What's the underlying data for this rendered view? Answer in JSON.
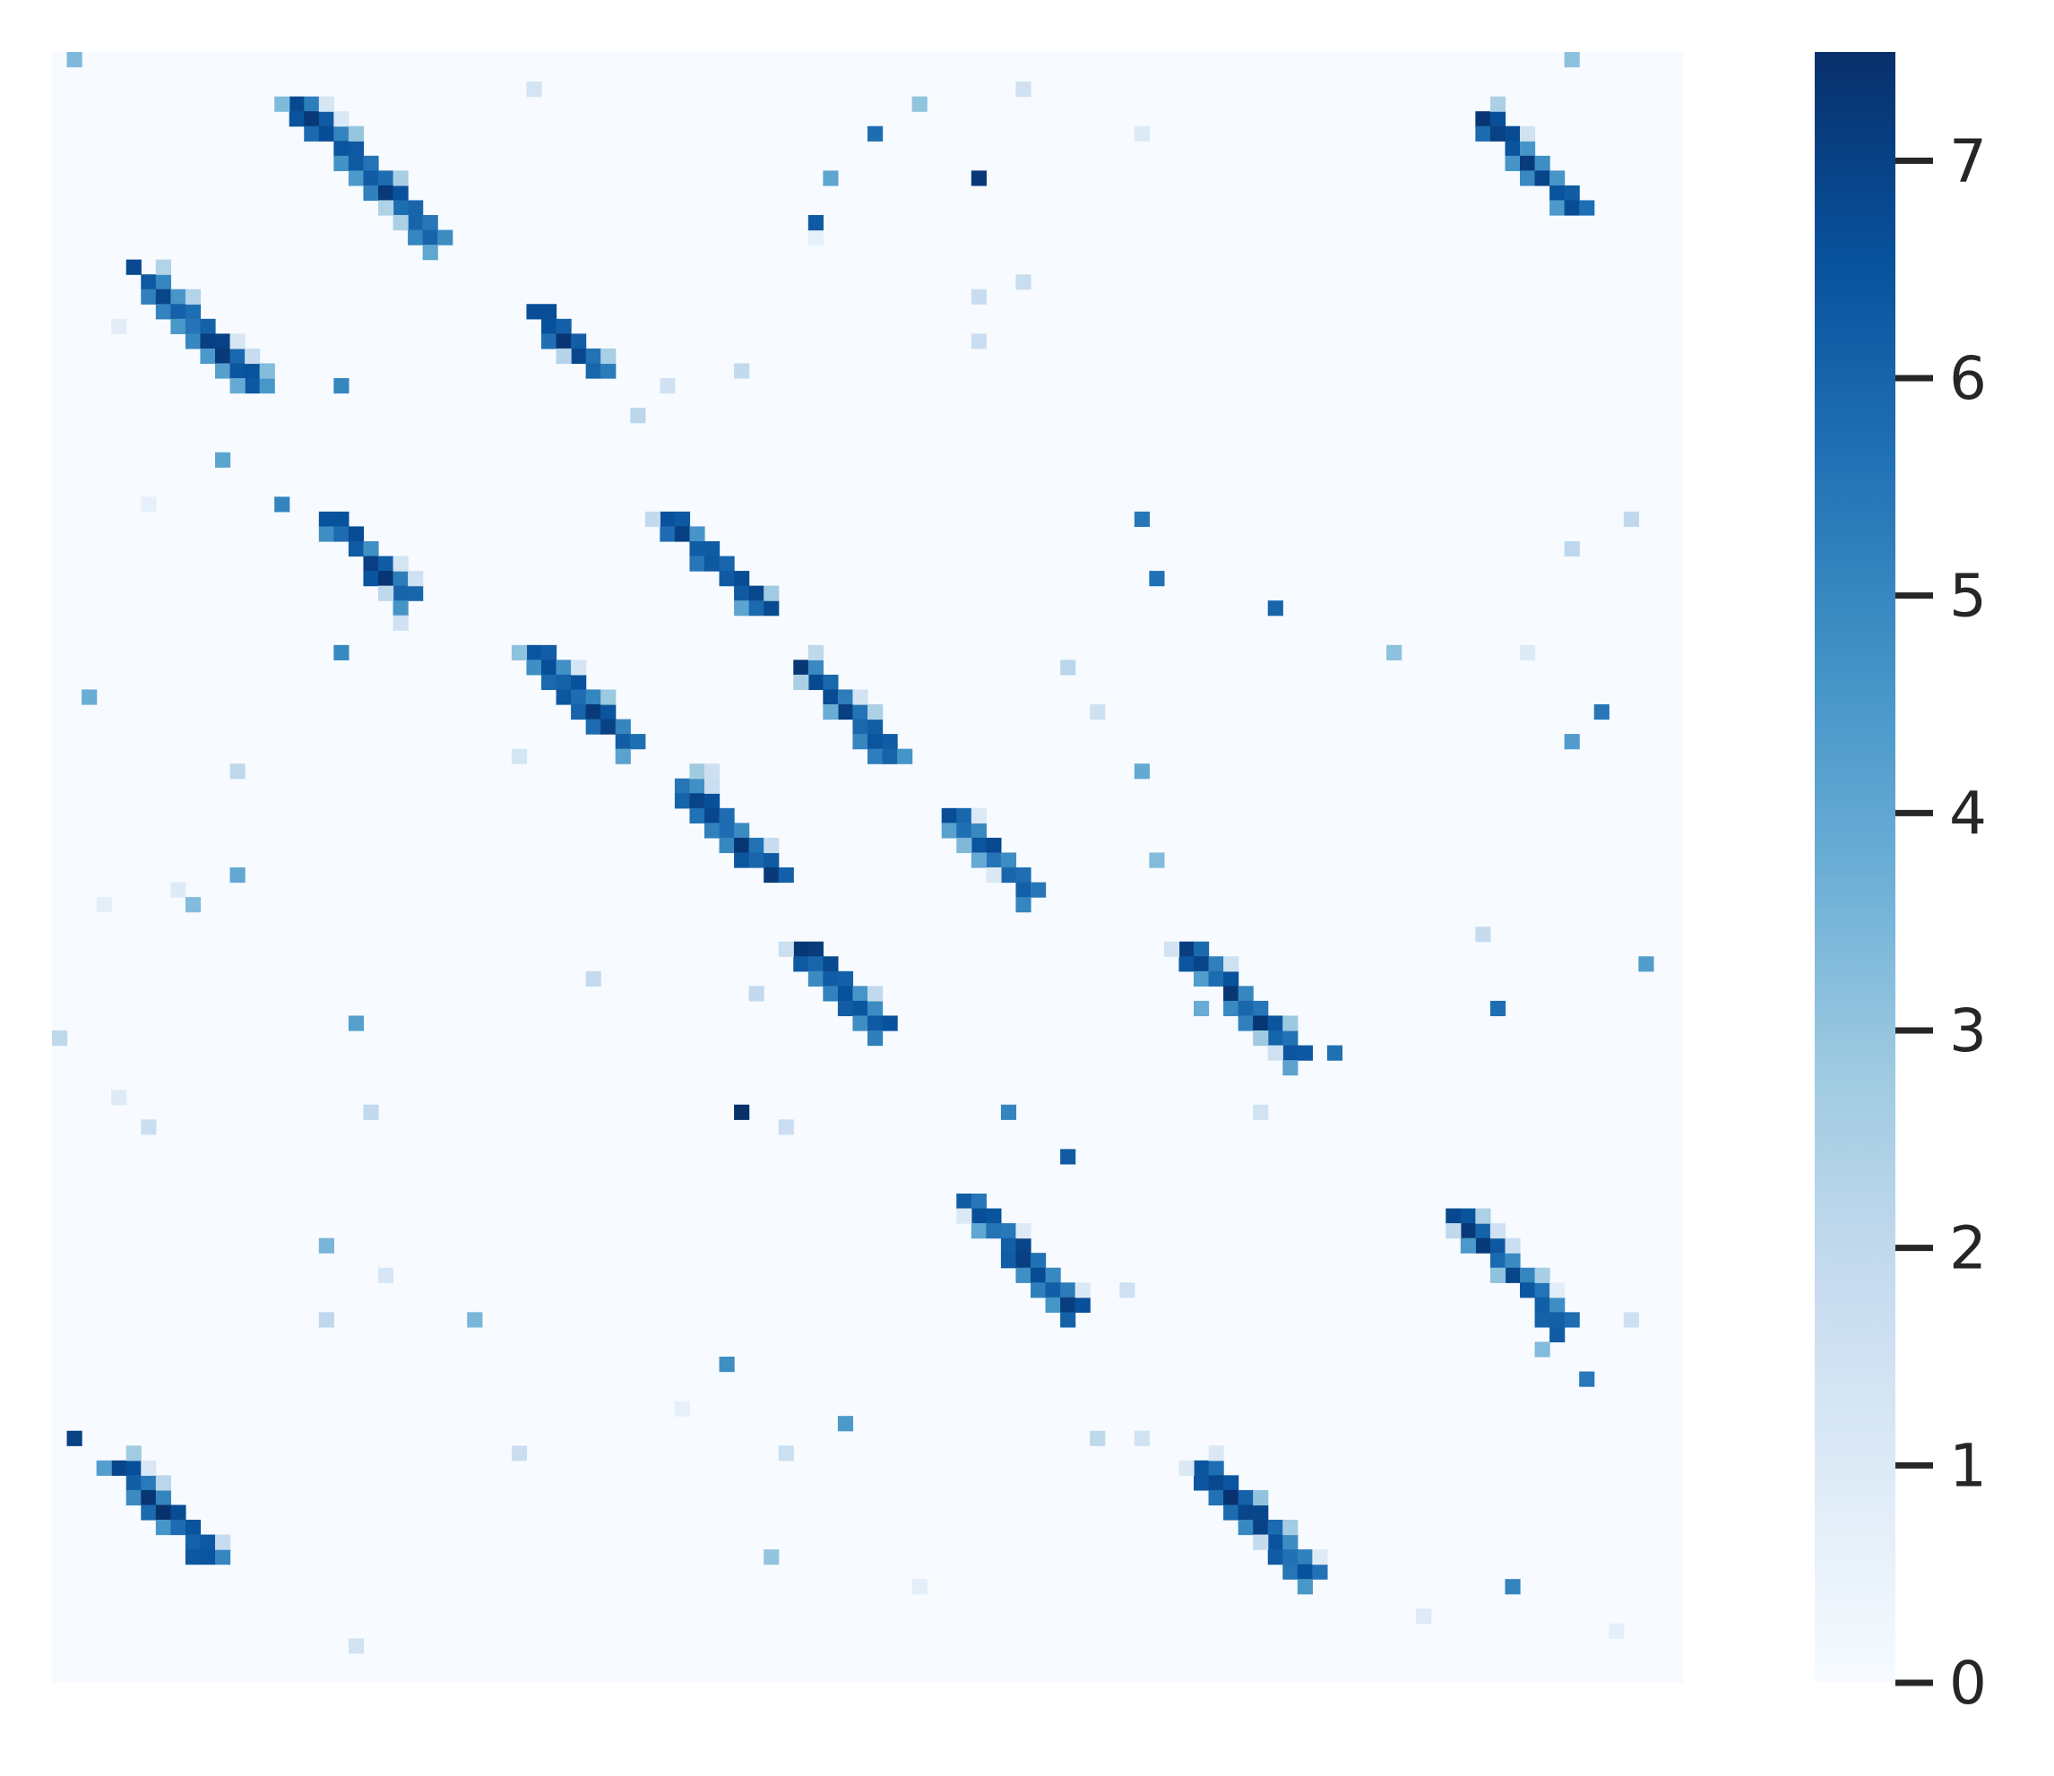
{
  "chart_data": {
    "type": "heatmap",
    "title": "",
    "xlabel": "",
    "ylabel": "",
    "colormap": "Blues",
    "grid_size": 110,
    "vmin": 0,
    "vmax": 7.5,
    "colorbar": {
      "ticks": [
        0,
        1,
        2,
        3,
        4,
        5,
        6,
        7
      ],
      "tick_labels": [
        "0",
        "1",
        "2",
        "3",
        "4",
        "5",
        "6",
        "7"
      ]
    },
    "colors": [
      "#f7fbff",
      "#deebf7",
      "#c6dbef",
      "#9ecae1",
      "#6baed6",
      "#4292c6",
      "#2171b5",
      "#08519c",
      "#08306b"
    ],
    "band_segments": [
      {
        "row_start": 3,
        "col_start": 16,
        "length": 10
      },
      {
        "row_start": 15,
        "col_start": 6,
        "length": 8
      },
      {
        "row_start": 17,
        "col_start": 32,
        "length": 5
      },
      {
        "row_start": 31,
        "col_start": 18,
        "length": 6
      },
      {
        "row_start": 31,
        "col_start": 41,
        "length": 7
      },
      {
        "row_start": 40,
        "col_start": 32,
        "length": 7
      },
      {
        "row_start": 41,
        "col_start": 50,
        "length": 7
      },
      {
        "row_start": 49,
        "col_start": 42,
        "length": 7
      },
      {
        "row_start": 51,
        "col_start": 60,
        "length": 6
      },
      {
        "row_start": 60,
        "col_start": 50,
        "length": 6
      },
      {
        "row_start": 60,
        "col_start": 76,
        "length": 8
      },
      {
        "row_start": 77,
        "col_start": 61,
        "length": 8
      },
      {
        "row_start": 78,
        "col_start": 94,
        "length": 8
      },
      {
        "row_start": 95,
        "col_start": 77,
        "length": 8
      },
      {
        "row_start": 95,
        "col_start": 4,
        "length": 7
      },
      {
        "row_start": 4,
        "col_start": 96,
        "length": 7
      }
    ]
  }
}
